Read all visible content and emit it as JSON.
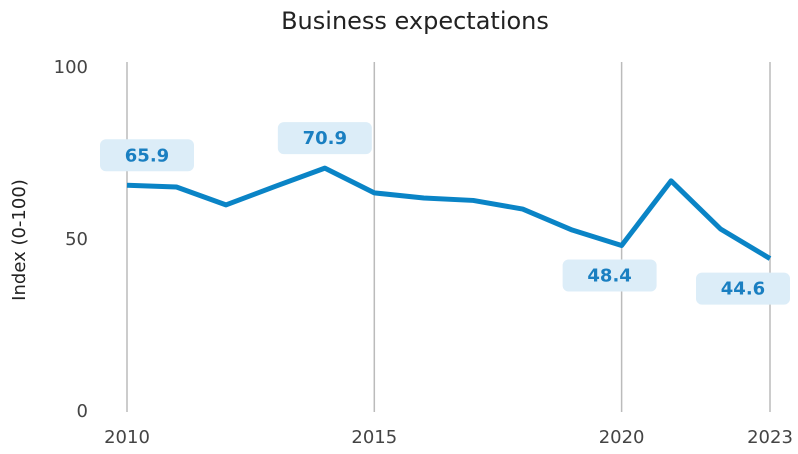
{
  "chart_data": {
    "type": "line",
    "title": "Business expectations",
    "y_label": "Index (0-100)",
    "x": [
      2010,
      2011,
      2012,
      2013,
      2014,
      2015,
      2016,
      2017,
      2018,
      2019,
      2020,
      2021,
      2022,
      2023
    ],
    "series": [
      {
        "name": "Business expectations",
        "color": "#0a84c6",
        "values": [
          65.9,
          65.4,
          60.2,
          65.6,
          70.9,
          63.7,
          62.2,
          61.5,
          59,
          52.9,
          48.4,
          67.2,
          53.2,
          44.6
        ],
        "value_labels": [
          "65.9",
          null,
          null,
          null,
          "70.9",
          null,
          null,
          null,
          null,
          null,
          "48.4",
          null,
          null,
          "44.6"
        ]
      }
    ],
    "xlim": [
      2010,
      2023
    ],
    "xticks": [
      2010,
      2015,
      2020,
      2023
    ],
    "ylim": [
      0,
      100
    ],
    "yticks": [
      0,
      50,
      100
    ],
    "grid": "x"
  }
}
